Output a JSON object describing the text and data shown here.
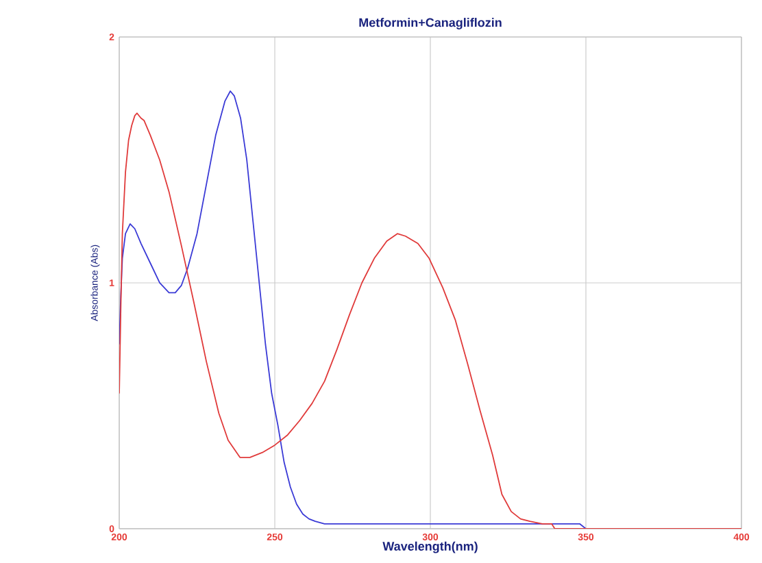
{
  "chart_data": {
    "type": "line",
    "title": "Metformin+Canagliflozin",
    "xlabel": "Wavelength(nm)",
    "ylabel": "Absorbance (Abs)",
    "xlim": [
      200,
      400
    ],
    "ylim": [
      0,
      2
    ],
    "xticks": [
      200,
      250,
      300,
      350,
      400
    ],
    "yticks": [
      0,
      1,
      2
    ],
    "grid": true,
    "marker": "none",
    "line_style": "solid",
    "series": [
      {
        "color": "#3a3ad6",
        "x": [
          200,
          200.5,
          201,
          202,
          203.5,
          205,
          207,
          210,
          213,
          216,
          218,
          220,
          222,
          225,
          228,
          231,
          234,
          235.7,
          237,
          239,
          241,
          243,
          245,
          247,
          249,
          251,
          253,
          255,
          257,
          259,
          261,
          263,
          266,
          270,
          280,
          300,
          320,
          340,
          348,
          350,
          360
        ],
        "values": [
          0.75,
          0.95,
          1.1,
          1.2,
          1.24,
          1.22,
          1.16,
          1.08,
          1.0,
          0.96,
          0.96,
          0.99,
          1.06,
          1.2,
          1.4,
          1.6,
          1.74,
          1.78,
          1.76,
          1.67,
          1.5,
          1.25,
          1.0,
          0.75,
          0.55,
          0.42,
          0.27,
          0.17,
          0.1,
          0.06,
          0.04,
          0.03,
          0.02,
          0.02,
          0.02,
          0.02,
          0.02,
          0.02,
          0.02,
          0.0,
          0.0
        ]
      },
      {
        "color": "#e03a3a",
        "x": [
          200,
          200.5,
          201,
          202,
          203,
          204,
          205,
          205.7,
          207,
          208,
          210,
          213,
          216,
          220,
          224,
          228,
          232,
          235,
          238.8,
          242,
          246,
          250,
          254,
          258,
          262,
          266,
          270,
          274,
          278,
          282,
          286,
          289.4,
          292,
          296,
          299.6,
          304,
          308,
          312,
          316,
          320,
          323,
          326,
          329,
          332,
          336,
          339,
          340,
          350,
          370,
          400
        ],
        "values": [
          0.55,
          0.9,
          1.2,
          1.45,
          1.58,
          1.64,
          1.68,
          1.69,
          1.67,
          1.66,
          1.6,
          1.5,
          1.37,
          1.15,
          0.92,
          0.68,
          0.47,
          0.36,
          0.29,
          0.29,
          0.31,
          0.34,
          0.38,
          0.44,
          0.51,
          0.6,
          0.73,
          0.87,
          1.0,
          1.1,
          1.17,
          1.2,
          1.19,
          1.16,
          1.1,
          0.98,
          0.85,
          0.67,
          0.48,
          0.3,
          0.14,
          0.07,
          0.04,
          0.03,
          0.02,
          0.02,
          0.0,
          0.0,
          0.0,
          0.0
        ]
      }
    ]
  }
}
